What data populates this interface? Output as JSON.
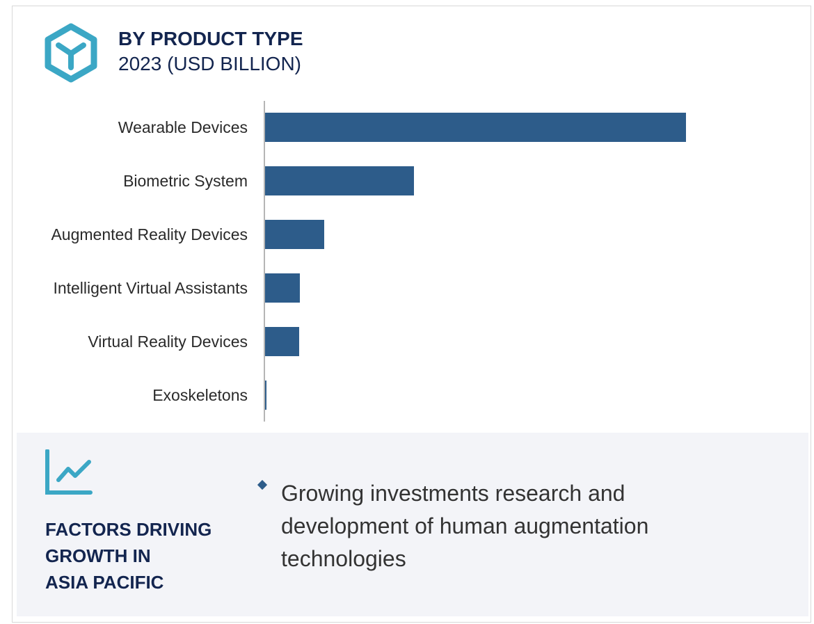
{
  "header": {
    "title": "BY PRODUCT TYPE",
    "subtitle": "2023 (USD BILLION)"
  },
  "chart_data": {
    "type": "bar",
    "orientation": "horizontal",
    "title": "BY PRODUCT TYPE",
    "subtitle": "2023 (USD BILLION)",
    "categories": [
      "Wearable Devices",
      "Biometric System",
      "Augmented Reality Devices",
      "Intelligent Virtual Assistants",
      "Virtual Reality Devices",
      "Exoskeletons"
    ],
    "values": [
      60.5,
      21.4,
      8.5,
      5.0,
      4.9,
      0.2
    ],
    "value_note": "relative values estimated from bar lengths; no axis scale shown",
    "xlim": [
      0,
      65
    ],
    "bar_color": "#2d5c8a",
    "grid": false
  },
  "factors": {
    "title_lines": [
      "FACTORS DRIVING",
      "GROWTH IN",
      "ASIA PACIFIC"
    ],
    "bullets": [
      "Growing investments research and development of human augmentation technologies"
    ]
  },
  "colors": {
    "accent": "#3ba7c5",
    "navy": "#13254f",
    "bar": "#2d5c8a",
    "panel": "#f3f4f8"
  }
}
